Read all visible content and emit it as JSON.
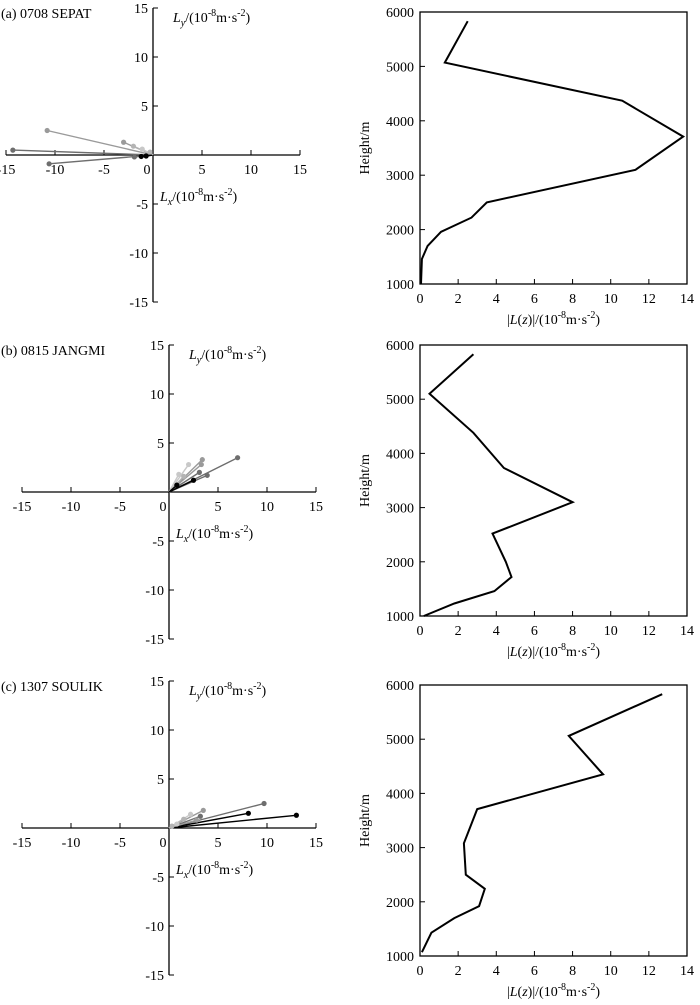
{
  "chart_data": [
    {
      "type": "scatter",
      "title": "(a) 0708 SEPAT",
      "xlabel": "Lx/(10-8m·s-2)",
      "ylabel": "Ly/(10-8m·s-2)",
      "xlim": [
        -15,
        15
      ],
      "ylim": [
        -15,
        15
      ],
      "xticks": [
        -15,
        -10,
        -5,
        0,
        5,
        10,
        15
      ],
      "yticks": [
        -15,
        -10,
        -5,
        0,
        5,
        10,
        15
      ],
      "vectors": [
        {
          "x": -14.3,
          "y": 0.5,
          "color": "#6e6e6e"
        },
        {
          "x": -10.8,
          "y": 2.5,
          "color": "#9a9a9a"
        },
        {
          "x": -10.6,
          "y": -0.9,
          "color": "#6e6e6e"
        },
        {
          "x": -3.0,
          "y": 1.3,
          "color": "#9a9a9a"
        },
        {
          "x": -2.0,
          "y": 0.9,
          "color": "#b4b4b4"
        },
        {
          "x": -1.1,
          "y": 0.6,
          "color": "#c8c8c8"
        },
        {
          "x": -1.9,
          "y": -0.2,
          "color": "#6e6e6e"
        },
        {
          "x": -1.2,
          "y": -0.15,
          "color": "#000000"
        },
        {
          "x": -0.7,
          "y": -0.1,
          "color": "#000000"
        },
        {
          "x": -0.3,
          "y": 0.3,
          "color": "#b4b4b4"
        }
      ]
    },
    {
      "type": "line",
      "xlabel": "|L(z)|/(10-8m·s-2)",
      "ylabel": "Height/m",
      "xlim": [
        0,
        14
      ],
      "ylim": [
        1000,
        6000
      ],
      "xticks": [
        0,
        2,
        4,
        6,
        8,
        10,
        12,
        14
      ],
      "yticks": [
        1000,
        2000,
        3000,
        4000,
        5000,
        6000
      ],
      "x": [
        2.5,
        1.3,
        10.6,
        13.8,
        11.3,
        3.5,
        2.7,
        1.1,
        0.4,
        0.1,
        0.05
      ],
      "y": [
        5830,
        5070,
        4370,
        3710,
        3100,
        2500,
        2220,
        1960,
        1700,
        1460,
        1000
      ]
    },
    {
      "type": "scatter",
      "title": "(b) 0815 JANGMI",
      "xlabel": "Lx/(10-8m·s-2)",
      "ylabel": "Ly/(10-8m·s-2)",
      "xlim": [
        -15,
        15
      ],
      "ylim": [
        -15,
        15
      ],
      "xticks": [
        -15,
        -10,
        -5,
        0,
        5,
        10,
        15
      ],
      "yticks": [
        -15,
        -10,
        -5,
        0,
        5,
        10,
        15
      ],
      "vectors": [
        {
          "x": 7.0,
          "y": 3.5,
          "color": "#6e6e6e"
        },
        {
          "x": 3.9,
          "y": 1.7,
          "color": "#6e6e6e"
        },
        {
          "x": 3.4,
          "y": 3.3,
          "color": "#9a9a9a"
        },
        {
          "x": 3.3,
          "y": 2.8,
          "color": "#9a9a9a"
        },
        {
          "x": 3.1,
          "y": 2.0,
          "color": "#6e6e6e"
        },
        {
          "x": 2.5,
          "y": 1.2,
          "color": "#000000"
        },
        {
          "x": 2.0,
          "y": 2.8,
          "color": "#c8c8c8"
        },
        {
          "x": 1.5,
          "y": 1.6,
          "color": "#b4b4b4"
        },
        {
          "x": 1.0,
          "y": 1.8,
          "color": "#c8c8c8"
        },
        {
          "x": 0.8,
          "y": 0.7,
          "color": "#000000"
        }
      ]
    },
    {
      "type": "line",
      "xlabel": "|L(z)|/(10-8m·s-2)",
      "ylabel": "Height/m",
      "xlim": [
        0,
        14
      ],
      "ylim": [
        1000,
        6000
      ],
      "xticks": [
        0,
        2,
        4,
        6,
        8,
        10,
        12,
        14
      ],
      "yticks": [
        1000,
        2000,
        3000,
        4000,
        5000,
        6000
      ],
      "x": [
        2.8,
        0.5,
        2.8,
        4.4,
        8.0,
        3.8,
        4.5,
        4.8,
        3.9,
        1.8,
        0.2
      ],
      "y": [
        5830,
        5100,
        4380,
        3730,
        3100,
        2520,
        2000,
        1720,
        1460,
        1230,
        1000
      ]
    },
    {
      "type": "scatter",
      "title": "(c) 1307 SOULIK",
      "xlabel": "Lx/(10-8m·s-2)",
      "ylabel": "Ly/(10-8m·s-2)",
      "xlim": [
        -15,
        15
      ],
      "ylim": [
        -15,
        15
      ],
      "xticks": [
        -15,
        -10,
        -5,
        0,
        5,
        10,
        15
      ],
      "yticks": [
        -15,
        -10,
        -5,
        0,
        5,
        10,
        15
      ],
      "vectors": [
        {
          "x": 13.0,
          "y": 1.3,
          "color": "#000000"
        },
        {
          "x": 9.7,
          "y": 2.5,
          "color": "#6e6e6e"
        },
        {
          "x": 8.1,
          "y": 1.5,
          "color": "#000000"
        },
        {
          "x": 3.5,
          "y": 1.8,
          "color": "#9a9a9a"
        },
        {
          "x": 3.2,
          "y": 1.2,
          "color": "#6e6e6e"
        },
        {
          "x": 2.8,
          "y": 0.8,
          "color": "#9a9a9a"
        },
        {
          "x": 2.2,
          "y": 1.4,
          "color": "#c8c8c8"
        },
        {
          "x": 1.5,
          "y": 0.9,
          "color": "#b4b4b4"
        },
        {
          "x": 0.8,
          "y": 0.4,
          "color": "#c8c8c8"
        },
        {
          "x": 0.3,
          "y": 0.2,
          "color": "#b4b4b4"
        }
      ]
    },
    {
      "type": "line",
      "xlabel": "|L(z)|/(10-8m·s-2)",
      "ylabel": "Height/m",
      "xlim": [
        0,
        14
      ],
      "ylim": [
        1000,
        6000
      ],
      "xticks": [
        0,
        2,
        4,
        6,
        8,
        10,
        12,
        14
      ],
      "yticks": [
        1000,
        2000,
        3000,
        4000,
        5000,
        6000
      ],
      "x": [
        12.7,
        7.8,
        9.6,
        3.0,
        2.3,
        2.4,
        3.4,
        3.1,
        1.8,
        0.6,
        0.1
      ],
      "y": [
        5830,
        5060,
        4350,
        3710,
        3080,
        2500,
        2240,
        1920,
        1700,
        1430,
        1070
      ]
    }
  ]
}
